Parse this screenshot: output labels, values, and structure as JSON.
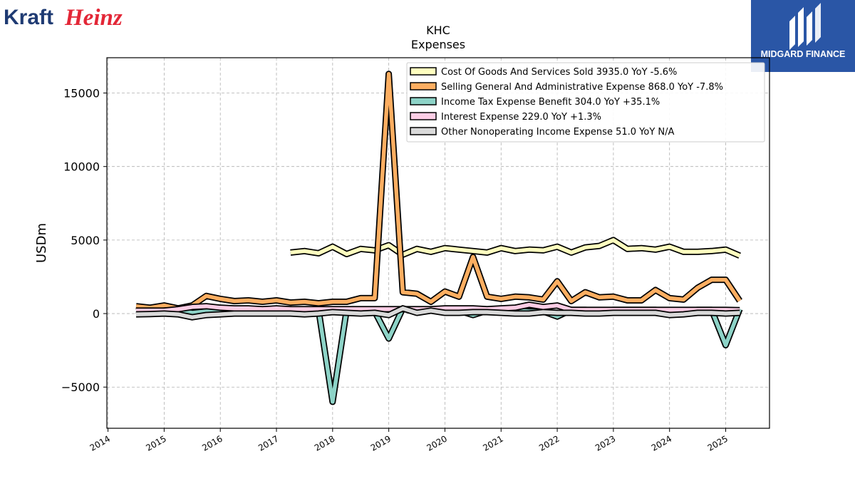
{
  "brand": {
    "left_logo": {
      "word1": "Kraft",
      "word2": "Heinz",
      "color1": "#1f3b73",
      "color2": "#e32636"
    },
    "right_logo": {
      "text": "MIDGARD FINANCE",
      "bg": "#2a56a6"
    }
  },
  "chart_data": {
    "type": "line",
    "title": "KHC",
    "subtitle": "Expenses",
    "ylabel": "USDm",
    "xlabel": "",
    "ylim": [
      -7800,
      17400
    ],
    "xlim": [
      2013.98,
      2025.78
    ],
    "yticks": [
      -5000,
      0,
      5000,
      10000,
      15000
    ],
    "ytick_labels": [
      "−5000",
      "0",
      "5000",
      "10000",
      "15000"
    ],
    "xticks": [
      2014,
      2015,
      2016,
      2017,
      2018,
      2019,
      2020,
      2021,
      2022,
      2023,
      2024,
      2025
    ],
    "xtick_labels": [
      "2014",
      "2015",
      "2016",
      "2017",
      "2018",
      "2019",
      "2020",
      "2021",
      "2022",
      "2023",
      "2024",
      "2025"
    ],
    "grid": true,
    "legend_position": "top-right",
    "series": [
      {
        "name": "Cost Of Goods And Services Sold  3935.0 YoY -5.6%",
        "color": "#ffffbf",
        "x": [
          2017.25,
          2017.5,
          2017.75,
          2018.0,
          2018.25,
          2018.5,
          2018.75,
          2019.0,
          2019.25,
          2019.5,
          2019.75,
          2020.0,
          2020.25,
          2020.5,
          2020.75,
          2021.0,
          2021.25,
          2021.5,
          2021.75,
          2022.0,
          2022.25,
          2022.5,
          2022.75,
          2023.0,
          2023.25,
          2023.5,
          2023.75,
          2024.0,
          2024.25,
          2024.5,
          2024.75,
          2025.0,
          2025.25
        ],
        "y": [
          4150,
          4250,
          4100,
          4550,
          4050,
          4400,
          4300,
          4650,
          4000,
          4400,
          4200,
          4450,
          4350,
          4250,
          4150,
          4450,
          4250,
          4350,
          4300,
          4550,
          4150,
          4500,
          4600,
          5000,
          4400,
          4450,
          4350,
          4550,
          4200,
          4200,
          4250,
          4350,
          3935
        ]
      },
      {
        "name": "Selling General And Administrative Expense  868.0 YoY -7.8%",
        "color": "#fdae61",
        "x": [
          2014.5,
          2014.75,
          2015.0,
          2015.25,
          2015.5,
          2015.75,
          2016.0,
          2016.25,
          2016.5,
          2016.75,
          2017.0,
          2017.25,
          2017.5,
          2017.75,
          2018.0,
          2018.25,
          2018.5,
          2018.75,
          2019.0,
          2019.25,
          2019.5,
          2019.75,
          2020.0,
          2020.25,
          2020.5,
          2020.75,
          2021.0,
          2021.25,
          2021.5,
          2021.75,
          2022.0,
          2022.25,
          2022.5,
          2022.75,
          2023.0,
          2023.25,
          2023.5,
          2023.75,
          2024.0,
          2024.25,
          2024.5,
          2024.75,
          2025.0,
          2025.25
        ],
        "y": [
          500,
          400,
          550,
          350,
          550,
          1200,
          1000,
          850,
          900,
          800,
          900,
          750,
          800,
          700,
          800,
          800,
          1050,
          1050,
          16300,
          1450,
          1350,
          800,
          1500,
          1150,
          3850,
          1150,
          1000,
          1150,
          1100,
          950,
          2200,
          850,
          1450,
          1100,
          1150,
          900,
          900,
          1600,
          1050,
          950,
          1750,
          2300,
          2300,
          868
        ]
      },
      {
        "name": "Income Tax Expense Benefit  304.0 YoY +35.1%",
        "color": "#8dd3c7",
        "x": [
          2014.5,
          2014.75,
          2015.0,
          2015.25,
          2015.5,
          2015.75,
          2016.0,
          2016.25,
          2016.5,
          2016.75,
          2017.0,
          2017.25,
          2017.5,
          2017.75,
          2018.0,
          2018.25,
          2018.5,
          2018.75,
          2019.0,
          2019.25,
          2019.5,
          2019.75,
          2020.0,
          2020.25,
          2020.5,
          2020.75,
          2021.0,
          2021.25,
          2021.5,
          2021.75,
          2022.0,
          2022.25,
          2022.5,
          2022.75,
          2023.0,
          2023.25,
          2023.5,
          2023.75,
          2024.0,
          2024.25,
          2024.5,
          2024.75,
          2025.0,
          2025.25
        ],
        "y": [
          200,
          150,
          200,
          250,
          50,
          150,
          200,
          250,
          250,
          200,
          250,
          300,
          250,
          250,
          -6000,
          250,
          200,
          150,
          -1700,
          350,
          100,
          200,
          150,
          200,
          -100,
          200,
          200,
          200,
          150,
          150,
          -200,
          250,
          250,
          200,
          250,
          250,
          250,
          250,
          150,
          200,
          250,
          250,
          -2150,
          304
        ]
      },
      {
        "name": "Interest Expense  229.0 YoY +1.3%",
        "color": "#fccde5",
        "x": [
          2014.5,
          2014.75,
          2015.0,
          2015.25,
          2015.5,
          2015.75,
          2016.0,
          2016.25,
          2016.5,
          2016.75,
          2017.0,
          2017.25,
          2017.5,
          2017.75,
          2018.0,
          2018.25,
          2018.5,
          2018.75,
          2019.0,
          2019.25,
          2019.5,
          2019.75,
          2020.0,
          2020.25,
          2020.5,
          2020.75,
          2021.0,
          2021.25,
          2021.5,
          2021.75,
          2022.0,
          2022.25,
          2022.5,
          2022.75,
          2023.0,
          2023.25,
          2023.5,
          2023.75,
          2024.0,
          2024.25,
          2024.5,
          2024.75,
          2025.0,
          2025.25
        ],
        "y": [
          200,
          200,
          200,
          300,
          450,
          500,
          400,
          350,
          350,
          300,
          350,
          300,
          300,
          300,
          300,
          300,
          300,
          300,
          300,
          300,
          300,
          300,
          350,
          350,
          350,
          300,
          350,
          400,
          600,
          450,
          550,
          250,
          250,
          250,
          250,
          250,
          250,
          250,
          250,
          250,
          250,
          250,
          250,
          229
        ]
      },
      {
        "name": "Other Nonoperating Income Expense  51.0 YoY N/A",
        "color": "#d9d9d9",
        "x": [
          2014.5,
          2014.75,
          2015.0,
          2015.25,
          2015.5,
          2015.75,
          2016.0,
          2016.25,
          2016.5,
          2016.75,
          2017.0,
          2017.25,
          2017.5,
          2017.75,
          2018.0,
          2018.25,
          2018.5,
          2018.75,
          2019.0,
          2019.25,
          2019.5,
          2019.75,
          2020.0,
          2020.25,
          2020.5,
          2020.75,
          2021.0,
          2021.25,
          2021.5,
          2021.75,
          2022.0,
          2022.25,
          2022.5,
          2022.75,
          2023.0,
          2023.25,
          2023.5,
          2023.75,
          2024.0,
          2024.25,
          2024.5,
          2024.75,
          2025.0,
          2025.25
        ],
        "y": [
          -50,
          -30,
          0,
          -50,
          -250,
          -100,
          -50,
          0,
          0,
          0,
          0,
          0,
          -50,
          0,
          100,
          50,
          0,
          50,
          -100,
          350,
          50,
          200,
          50,
          50,
          100,
          100,
          50,
          0,
          0,
          100,
          50,
          50,
          0,
          0,
          50,
          50,
          50,
          50,
          -100,
          -50,
          50,
          50,
          0,
          51
        ]
      }
    ]
  }
}
